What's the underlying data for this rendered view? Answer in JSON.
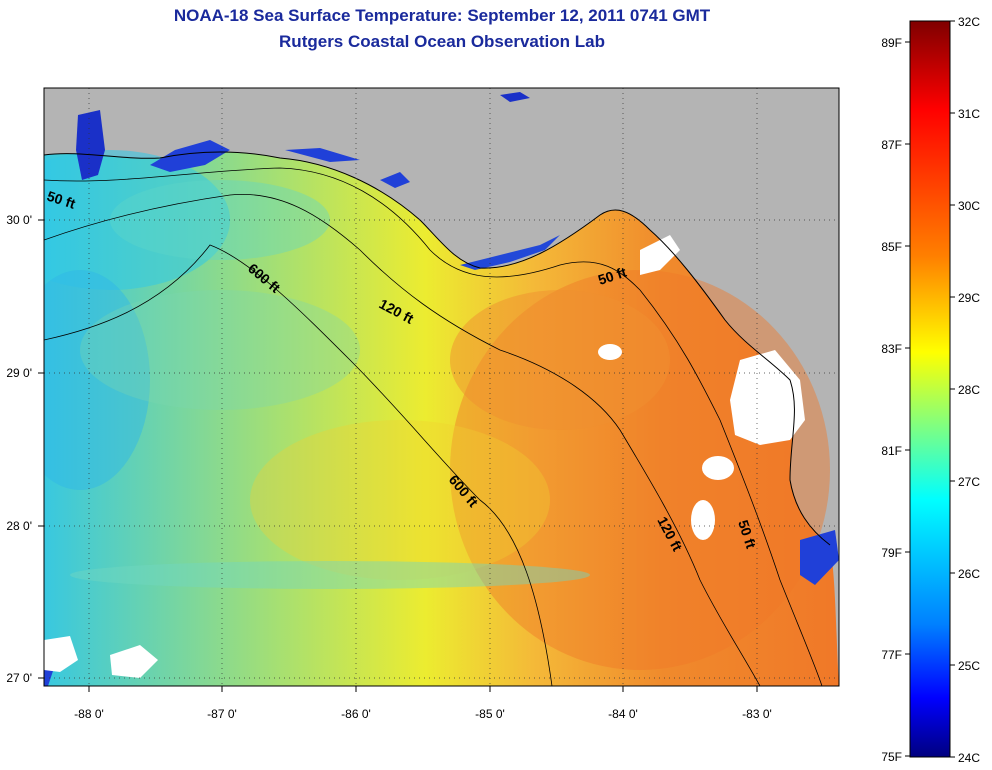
{
  "title": "NOAA-18 Sea Surface Temperature:  September 12, 2011 0741 GMT",
  "subtitle": "Rutgers Coastal Ocean Observation Lab",
  "axes": {
    "lon_ticks": [
      "-88 0'",
      "-87 0'",
      "-86 0'",
      "-85 0'",
      "-84 0'",
      "-83 0'"
    ],
    "lat_ticks": [
      "30 0'",
      "29 0'",
      "28 0'",
      "27 0'"
    ]
  },
  "contours": {
    "c50_west": "50 ft",
    "c50_north": "50 ft",
    "c50_east": "50 ft",
    "c120_north": "120 ft",
    "c120_east": "120 ft",
    "c600_west": "600 ft",
    "c600_mid": "600 ft"
  },
  "colorbar": {
    "celsius": [
      "32C",
      "31C",
      "30C",
      "29C",
      "28C",
      "27C",
      "26C",
      "25C",
      "24C"
    ],
    "fahrenheit": [
      "89F",
      "87F",
      "85F",
      "83F",
      "81F",
      "79F",
      "77F",
      "75F"
    ]
  },
  "colors": {
    "land": "#b4b4b4",
    "title": "#1a2a9c",
    "cloud": "#ffffff"
  }
}
